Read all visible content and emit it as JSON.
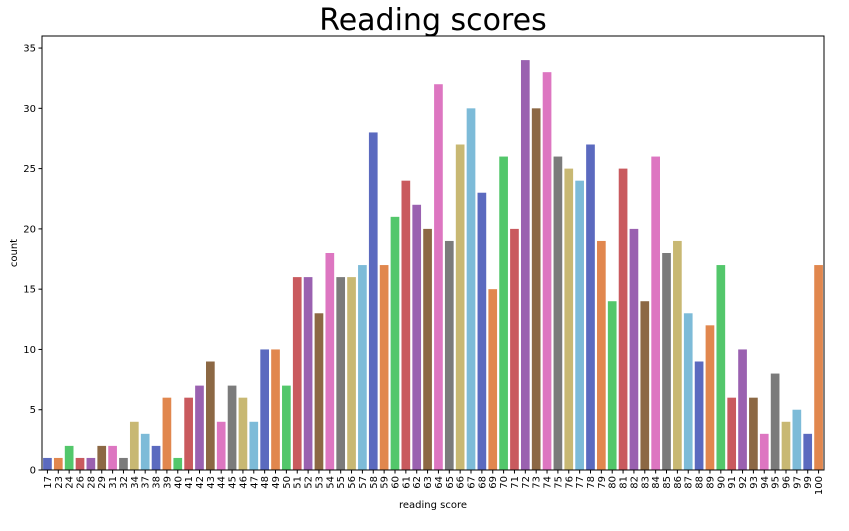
{
  "chart_data": {
    "type": "bar",
    "title": "Reading scores",
    "xlabel": "reading score",
    "ylabel": "count",
    "ylim": [
      0,
      36
    ],
    "yticks": [
      0,
      5,
      10,
      15,
      20,
      25,
      30,
      35
    ],
    "grid": false,
    "legend": "none",
    "categories": [
      "17",
      "23",
      "24",
      "26",
      "28",
      "29",
      "31",
      "32",
      "34",
      "37",
      "38",
      "39",
      "40",
      "41",
      "42",
      "43",
      "44",
      "45",
      "46",
      "47",
      "48",
      "49",
      "50",
      "51",
      "52",
      "53",
      "54",
      "55",
      "56",
      "57",
      "58",
      "59",
      "60",
      "61",
      "62",
      "63",
      "64",
      "65",
      "66",
      "67",
      "68",
      "69",
      "70",
      "71",
      "72",
      "73",
      "74",
      "75",
      "76",
      "77",
      "78",
      "79",
      "80",
      "81",
      "82",
      "83",
      "84",
      "85",
      "86",
      "87",
      "88",
      "89",
      "90",
      "91",
      "92",
      "93",
      "94",
      "95",
      "96",
      "97",
      "99",
      "100"
    ],
    "values": [
      1,
      1,
      2,
      1,
      1,
      2,
      2,
      1,
      4,
      3,
      2,
      6,
      1,
      6,
      7,
      9,
      4,
      7,
      6,
      4,
      10,
      10,
      7,
      16,
      16,
      13,
      18,
      16,
      16,
      17,
      28,
      17,
      21,
      24,
      22,
      20,
      32,
      19,
      27,
      30,
      23,
      15,
      26,
      20,
      34,
      30,
      33,
      26,
      25,
      24,
      27,
      19,
      14,
      25,
      20,
      14,
      26,
      18,
      19,
      13,
      9,
      12,
      17,
      6,
      10,
      6,
      3,
      8,
      4,
      5,
      3,
      17
    ],
    "palette": [
      "#5b6abf",
      "#e1874e",
      "#53c76b",
      "#c95a5e",
      "#9a61b0",
      "#8c6844",
      "#dd76c1",
      "#7b7b7b",
      "#c8b873",
      "#7dbbd8"
    ]
  }
}
